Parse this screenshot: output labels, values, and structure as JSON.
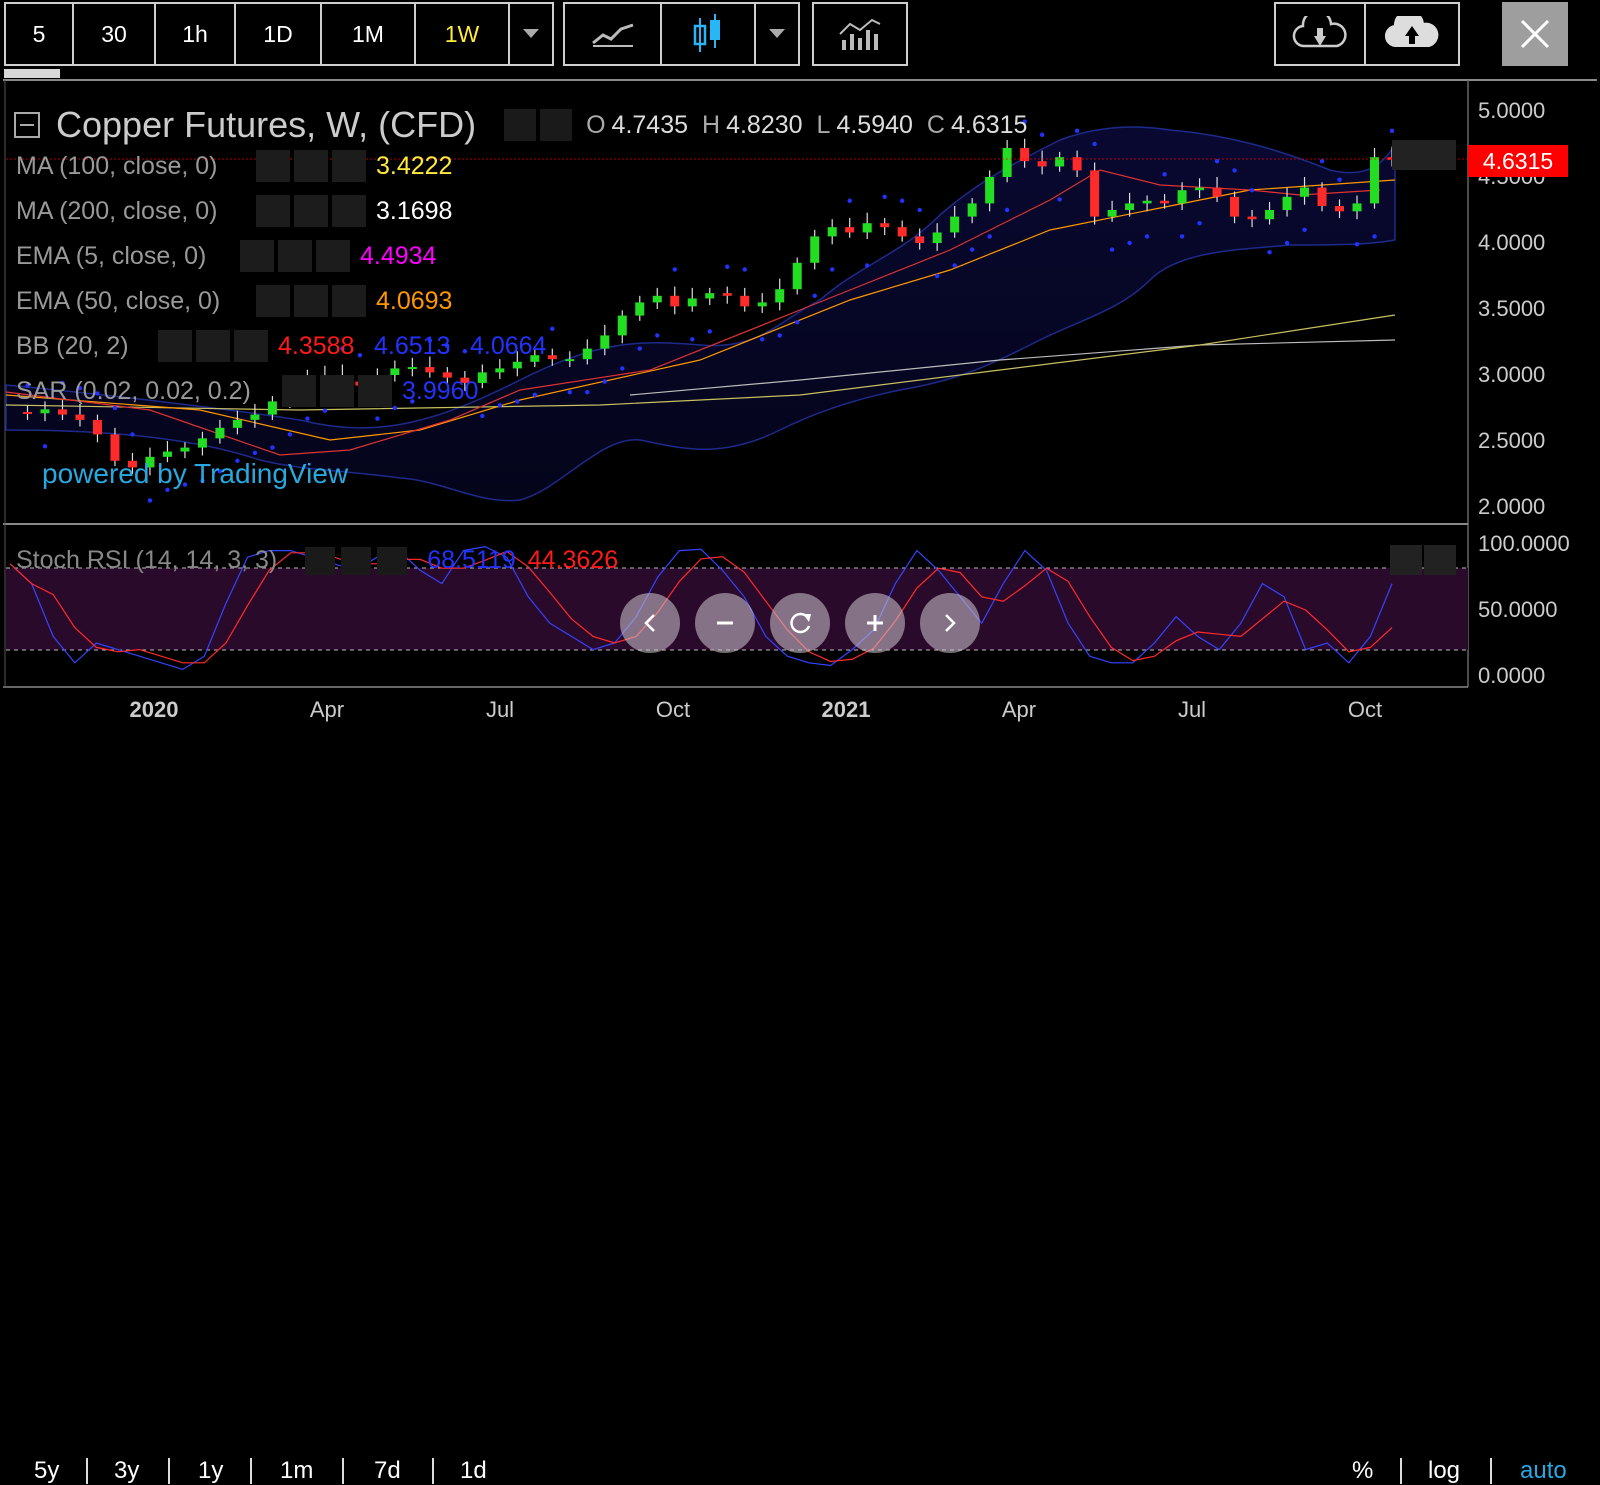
{
  "toolbar": {
    "intervals": [
      {
        "label": "5",
        "active": false
      },
      {
        "label": "30",
        "active": false
      },
      {
        "label": "1h",
        "active": false
      },
      {
        "label": "1D",
        "active": false
      },
      {
        "label": "1M",
        "active": false
      },
      {
        "label": "1W",
        "active": true
      }
    ],
    "icons": [
      "chevron-down-icon",
      "line-chart-icon",
      "candlestick-icon",
      "chevron-down-icon",
      "indicators-icon",
      "cloud-download-icon",
      "cloud-upload-icon",
      "close-icon"
    ]
  },
  "legend": {
    "title": "Copper Futures, W, (CFD)",
    "ohlc": {
      "o_label": "O",
      "o": "4.7435",
      "h_label": "H",
      "h": "4.8230",
      "l_label": "L",
      "l": "4.5940",
      "c_label": "C",
      "c": "4.6315"
    },
    "indicators": [
      {
        "name": "MA (100, close, 0)",
        "values": [
          "3.4222"
        ],
        "colors": [
          "#ffeb3b"
        ]
      },
      {
        "name": "MA (200, close, 0)",
        "values": [
          "3.1698"
        ],
        "colors": [
          "#ffffff"
        ]
      },
      {
        "name": "EMA (5, close, 0)",
        "values": [
          "4.4934"
        ],
        "colors": [
          "#ff00ff"
        ]
      },
      {
        "name": "EMA (50, close, 0)",
        "values": [
          "4.0693"
        ],
        "colors": [
          "#ff9800"
        ]
      },
      {
        "name": "BB (20, 2)",
        "values": [
          "4.3588",
          "4.6513",
          "4.0664"
        ],
        "colors": [
          "#ff1a1a",
          "#2233ff",
          "#2233ff"
        ]
      },
      {
        "name": "SAR (0.02, 0.02, 0.2)",
        "values": [
          "3.9960"
        ],
        "colors": [
          "#2233ff"
        ]
      }
    ],
    "watermark": "powered by TradingView",
    "stoch": {
      "name": "Stoch RSI (14, 14, 3, 3)",
      "k": "68.5119",
      "d": "44.3626",
      "k_color": "#2233ff",
      "d_color": "#ff1a1a"
    }
  },
  "price_axis": [
    "5.0000",
    "4.5000",
    "4.0000",
    "3.5000",
    "3.0000",
    "2.5000",
    "2.0000"
  ],
  "price_tag": {
    "value": "4.6315",
    "color": "#ff0000"
  },
  "stoch_axis": [
    "100.0000",
    "50.0000",
    "0.0000"
  ],
  "time_axis": [
    {
      "label": "2020",
      "bold": true
    },
    {
      "label": "Apr",
      "bold": false
    },
    {
      "label": "Jul",
      "bold": false
    },
    {
      "label": "Oct",
      "bold": false
    },
    {
      "label": "2021",
      "bold": true
    },
    {
      "label": "Apr",
      "bold": false
    },
    {
      "label": "Jul",
      "bold": false
    },
    {
      "label": "Oct",
      "bold": false
    }
  ],
  "ranges": [
    "5y",
    "3y",
    "1y",
    "1m",
    "7d",
    "1d"
  ],
  "scale_options": [
    {
      "label": "%",
      "active": false
    },
    {
      "label": "log",
      "active": false
    },
    {
      "label": "auto",
      "active": true
    }
  ],
  "nav": [
    "scroll-left-icon",
    "zoom-out-icon",
    "reset-icon",
    "zoom-in-icon",
    "scroll-right-icon"
  ],
  "colors": {
    "up": "#22dd22",
    "down": "#ff2a2a",
    "accent": "#ffeb3b",
    "stoch_band": "#2a0a2a"
  }
}
